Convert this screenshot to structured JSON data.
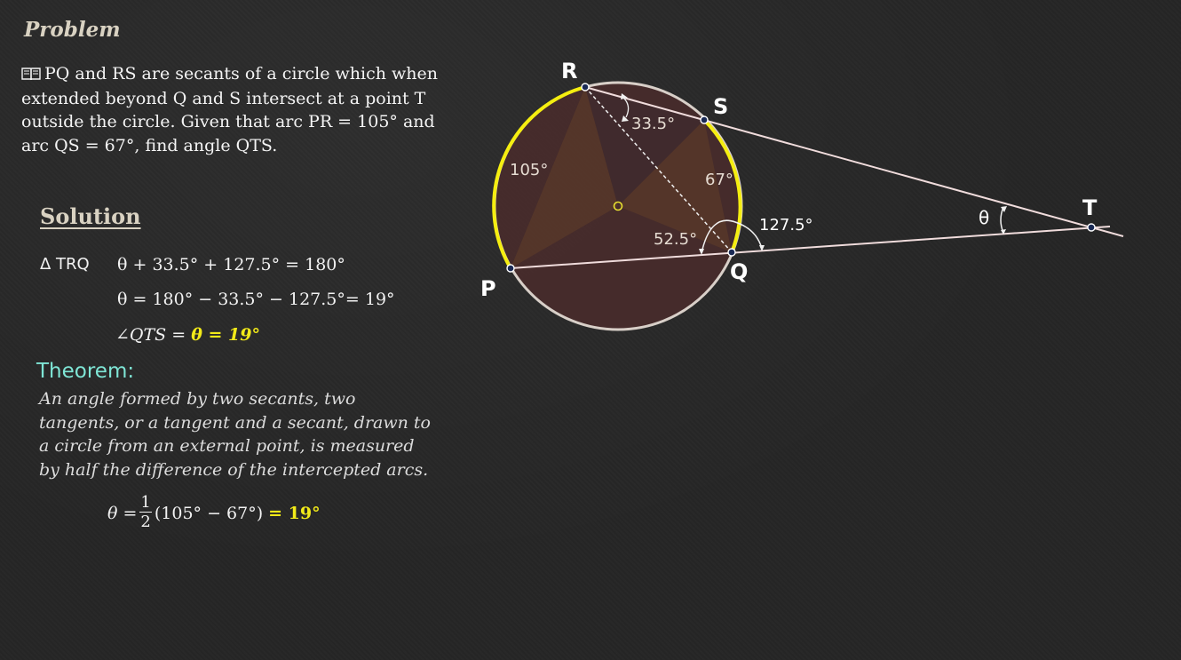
{
  "problem": {
    "heading": "Problem",
    "icon": "open-book-icon",
    "text": "PQ and RS are secants of a circle which when extended beyond Q and S intersect at a point T outside the circle. Given that arc PR = 105° and arc QS = 67°, find angle QTS."
  },
  "solution": {
    "heading": "Solution",
    "triangle_label": "Δ TRQ",
    "eq1": "θ + 33.5° + 127.5° = 180°",
    "eq2": "θ = 180° − 33.5° − 127.5°= 19°",
    "eq3_prefix": "∠QTS = ",
    "eq3_answer": "θ = 19°"
  },
  "theorem": {
    "heading": "Theorem:",
    "text": "An angle formed by two secants, two tangents, or a tangent and a secant,  drawn to a circle from an external point, is measured by half the difference of the intercepted arcs.",
    "formula_lhs": "θ =",
    "frac_num": "1",
    "frac_den": "2",
    "formula_rhs": "(105° − 67°)",
    "formula_answer": "= 19°"
  },
  "diagram": {
    "points": {
      "R": "R",
      "S": "S",
      "T": "T",
      "P": "P",
      "Q": "Q"
    },
    "labels": {
      "arc_pr": "105°",
      "arc_qs": "67°",
      "angle_r": "33.5°",
      "angle_q_inner": "52.5°",
      "angle_q_exterior": "127.5°",
      "theta": "θ"
    },
    "colors": {
      "highlight_arc": "#f5ee10",
      "circle": "#d8cfc8",
      "fill": "#4a2a2a",
      "lines": "#f0dcdc",
      "point_fill": "#1a2a55",
      "center": "#e8e030"
    }
  }
}
